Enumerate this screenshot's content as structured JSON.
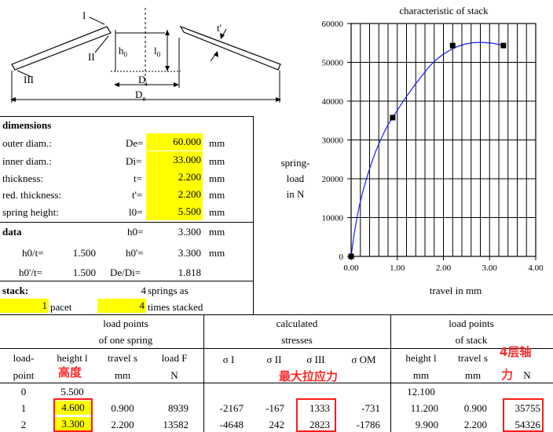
{
  "diagram": {
    "labels": {
      "I": "I",
      "II": "II",
      "III": "III",
      "t_prime": "t'",
      "h0": "h",
      "h0_sub": "0",
      "l0": "l",
      "l0_sub": "0",
      "Di": "D",
      "Di_sub": "i",
      "De": "D",
      "De_sub": "e"
    }
  },
  "dimensions": {
    "title": "dimensions",
    "rows": [
      {
        "label": "outer diam.:",
        "sym": "De=",
        "value": "60.000",
        "unit": "mm"
      },
      {
        "label": "inner diam.:",
        "sym": "Di=",
        "value": "33.000",
        "unit": "mm"
      },
      {
        "label": "thickness:",
        "sym": "t=",
        "value": "2.200",
        "unit": "mm"
      },
      {
        "label": "red. thickness:",
        "sym": "t'=",
        "value": "2.200",
        "unit": "mm"
      },
      {
        "label": "spring height:",
        "sym": "l0=",
        "value": "5.500",
        "unit": "mm"
      }
    ]
  },
  "data": {
    "title": "data",
    "h0_sym": "h0=",
    "h0_value": "3.300",
    "h0_unit": "mm",
    "h0t_label": "h0/t=",
    "h0t_value": "1.500",
    "h0p_sym": "h0'=",
    "h0p_value": "3.300",
    "h0p_unit": "mm",
    "h0pt_label": "h0'/t=",
    "h0pt_value": "1.500",
    "DeDi_label": "De/Di=",
    "DeDi_value": "1.818"
  },
  "stack": {
    "title": "stack:",
    "springs_count": "4",
    "springs_text": "springs as",
    "pacet_count": "1",
    "pacet_text": "pacet",
    "stacked_count": "4",
    "stacked_text": "times stacked"
  },
  "table": {
    "group1_title_1": "load points",
    "group1_title_2": "of one spring",
    "group2_title_1": "calculated",
    "group2_title_2": "stresses",
    "group3_title_1": "load points",
    "group3_title_2": "of stack",
    "headers": {
      "load_point_1": "load-",
      "load_point_2": "point",
      "height_1": "height l",
      "height_unit": "mm",
      "travel_1": "travel s",
      "travel_unit": "mm",
      "load_1": "load F",
      "load_unit": "N",
      "sigma_I": "σ I",
      "sigma_II": "σ II",
      "sigma_III": "σ III",
      "sigma_OM": "σ OM",
      "stack_height_1": "height l",
      "stack_height_unit": "mm",
      "stack_travel_1": "travel s",
      "stack_travel_unit": "mm",
      "stack_load_1": "load F",
      "stack_load_unit": "N"
    },
    "rows": [
      {
        "point": "0",
        "height": "5.500",
        "travel": "",
        "load": "",
        "sI": "",
        "sII": "",
        "sIII": "",
        "sOM": "",
        "stack_height": "12.100",
        "stack_travel": "",
        "stack_load": ""
      },
      {
        "point": "1",
        "height": "4.600",
        "travel": "0.900",
        "load": "8939",
        "sI": "-2167",
        "sII": "-167",
        "sIII": "1333",
        "sOM": "-731",
        "stack_height": "11.200",
        "stack_travel": "0.900",
        "stack_load": "35755"
      },
      {
        "point": "2",
        "height": "3.300",
        "travel": "2.200",
        "load": "13582",
        "sI": "-4648",
        "sII": "242",
        "sIII": "2823",
        "sOM": "-1786",
        "stack_height": "9.900",
        "stack_travel": "2.200",
        "stack_load": "54326"
      }
    ]
  },
  "annotations": {
    "height_cn": "高度",
    "stress_cn": "最大拉应力",
    "axial_cn_1": "4层轴",
    "axial_cn_2": "力"
  },
  "chart_data": {
    "type": "scatter",
    "title": "characteristic of stack",
    "xlabel": "travel in  mm",
    "ylabel_1": "spring-",
    "ylabel_2": "load",
    "ylabel_3": "in  N",
    "xlim": [
      0,
      4
    ],
    "ylim": [
      0,
      60000
    ],
    "xticks": [
      "0.00",
      "1.00",
      "2.00",
      "3.00",
      "4.00"
    ],
    "yticks": [
      "0",
      "10000",
      "20000",
      "30000",
      "40000",
      "50000",
      "60000"
    ],
    "grid": true,
    "x_grid_step": 0.2,
    "points": [
      {
        "x": 0.0,
        "y": 0
      },
      {
        "x": 0.9,
        "y": 35755
      },
      {
        "x": 2.2,
        "y": 54326
      },
      {
        "x": 3.3,
        "y": 54326
      }
    ],
    "curve": [
      {
        "x": 0.0,
        "y": 0
      },
      {
        "x": 0.1,
        "y": 8200
      },
      {
        "x": 0.25,
        "y": 16500
      },
      {
        "x": 0.5,
        "y": 26000
      },
      {
        "x": 0.75,
        "y": 32800
      },
      {
        "x": 0.9,
        "y": 35755
      },
      {
        "x": 1.2,
        "y": 41200
      },
      {
        "x": 1.5,
        "y": 46000
      },
      {
        "x": 1.8,
        "y": 50200
      },
      {
        "x": 2.2,
        "y": 53500
      },
      {
        "x": 2.6,
        "y": 55000
      },
      {
        "x": 3.0,
        "y": 55000
      },
      {
        "x": 3.3,
        "y": 54326
      }
    ],
    "colors": {
      "curve": "#1a1aff",
      "marker": "#000000"
    }
  }
}
